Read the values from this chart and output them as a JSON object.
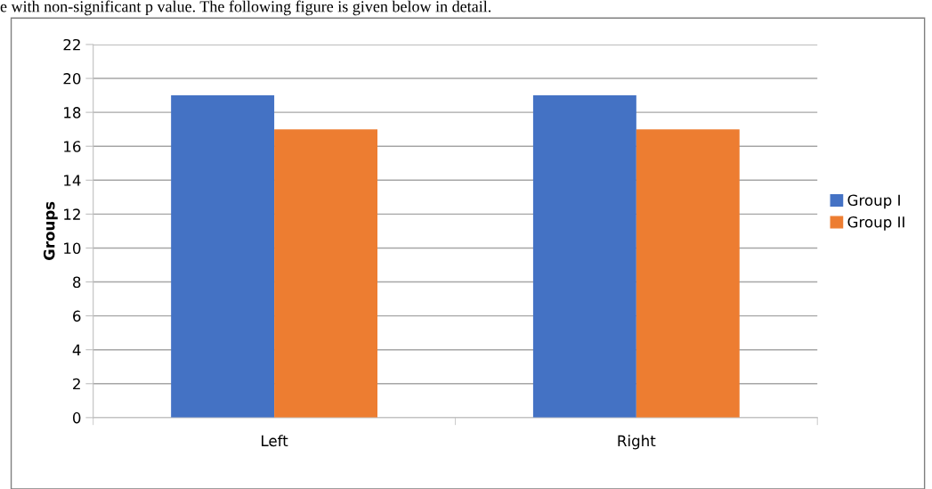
{
  "chart_data": {
    "type": "bar",
    "ylabel": "Groups",
    "categories": [
      "Left",
      "Right"
    ],
    "series": [
      {
        "name": "Group I",
        "color": "#4472c4",
        "values": [
          19,
          19
        ]
      },
      {
        "name": "Group II",
        "color": "#ed7d31",
        "values": [
          17,
          17
        ]
      }
    ],
    "ylim": [
      0,
      22
    ],
    "yticks": [
      0,
      2,
      4,
      6,
      8,
      10,
      12,
      14,
      16,
      18,
      20,
      22
    ],
    "grid": "y",
    "legend": "right",
    "annotations": [
      "e with non-significant p value. The following figure is given below in detail."
    ]
  }
}
